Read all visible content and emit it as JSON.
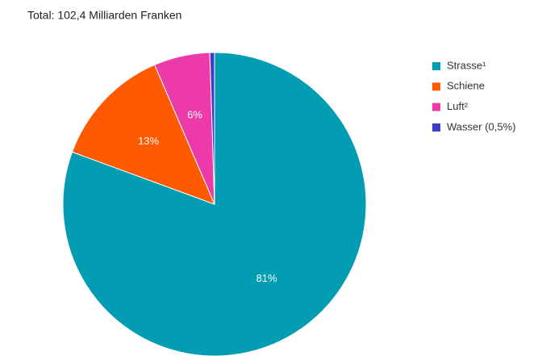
{
  "chart_data": {
    "type": "pie",
    "title": "Total: 102,4 Milliarden Franken",
    "categories": [
      "Strasse¹",
      "Schiene",
      "Luft²",
      "Wasser (0,5%)"
    ],
    "values": [
      81,
      13,
      6,
      0.5
    ],
    "value_labels": [
      "81%",
      "13%",
      "6%",
      null
    ],
    "colors": [
      "#029db3",
      "#ff5a00",
      "#ed3aaa",
      "#3c3cc8"
    ],
    "legend": "right"
  }
}
